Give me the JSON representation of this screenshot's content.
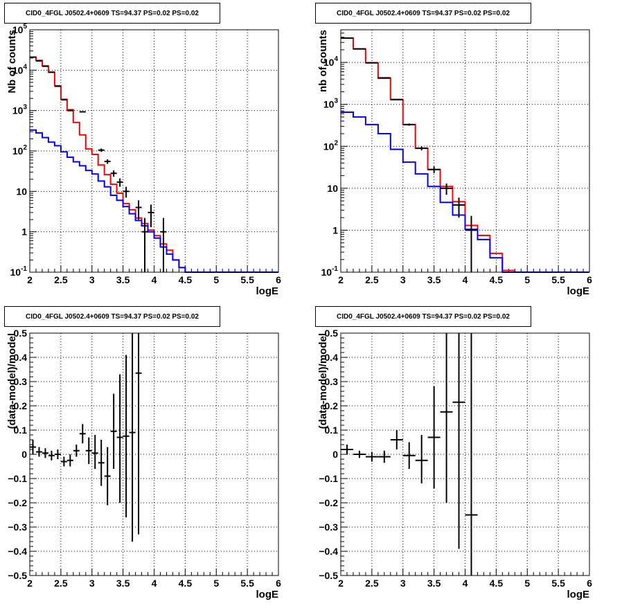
{
  "chart_data": [
    {
      "type": "histogram",
      "title": "CID0_4FGL J0502.4+0609 TS=94.37 PS=0.02 PS=0.02",
      "xlabel": "logE",
      "ylabel": "Nb of counts",
      "xlim": [
        2,
        6
      ],
      "ylim": [
        0.1,
        100000
      ],
      "yscale": "log",
      "grid": true,
      "x_ticks": [
        "2",
        "2.5",
        "3",
        "3.5",
        "4",
        "4.5",
        "5",
        "5.5",
        "6"
      ],
      "y_ticks": [
        {
          "v": 0.1,
          "base": "10",
          "exp": "-1"
        },
        {
          "v": 1,
          "text": "1"
        },
        {
          "v": 10,
          "text": "10"
        },
        {
          "v": 100,
          "base": "10",
          "exp": "2"
        },
        {
          "v": 1000,
          "base": "10",
          "exp": "3"
        },
        {
          "v": 10000,
          "base": "10",
          "exp": "4"
        },
        {
          "v": 100000,
          "base": "10",
          "exp": "5"
        }
      ],
      "bin_edges": [
        2.0,
        2.1,
        2.2,
        2.3,
        2.4,
        2.5,
        2.6,
        2.7,
        2.8,
        2.9,
        3.0,
        3.1,
        3.2,
        3.3,
        3.4,
        3.5,
        3.6,
        3.7,
        3.8,
        3.9,
        4.0,
        4.1,
        4.2,
        4.3,
        4.4,
        4.5,
        4.6,
        4.7,
        4.8,
        4.9,
        5.0,
        5.1,
        5.2,
        5.3,
        5.4,
        5.5,
        5.6,
        5.7,
        5.8,
        5.9,
        6.0
      ],
      "series": [
        {
          "color": "#ff0000",
          "kind": "step",
          "values": [
            21000,
            17500,
            12800,
            8900,
            4100,
            1900,
            1050,
            510,
            250,
            112,
            82,
            45,
            26,
            15,
            9,
            5,
            3.5,
            2.2,
            1.6,
            1.1,
            0.8,
            0.5,
            0.35,
            0.2,
            0.13,
            0.1,
            0.1,
            0.1,
            0.1,
            0.1,
            0.1,
            0.1,
            0.1,
            0.1,
            0.1,
            0.1,
            0.1,
            0.1,
            0.1,
            0.1
          ]
        },
        {
          "color": "#0000ff",
          "kind": "step",
          "values": [
            330,
            280,
            215,
            165,
            135,
            95,
            70,
            54,
            43,
            33,
            27,
            18,
            13,
            8,
            6,
            4.2,
            2.8,
            1.9,
            1.4,
            1.0,
            0.7,
            0.42,
            0.28,
            0.2,
            0.13,
            0.1,
            0.1,
            0.1,
            0.1,
            0.1,
            0.1,
            0.1,
            0.1,
            0.1,
            0.1,
            0.1,
            0.1,
            0.1,
            0.1,
            0.1
          ]
        },
        {
          "color": "#000000",
          "kind": "points",
          "points": [
            {
              "x": 2.05,
              "y": 21000,
              "lo": 20850,
              "hi": 21150
            },
            {
              "x": 2.15,
              "y": 17000,
              "lo": 16870,
              "hi": 17130
            },
            {
              "x": 2.25,
              "y": 12500,
              "lo": 12390,
              "hi": 12610
            },
            {
              "x": 2.35,
              "y": 8900,
              "lo": 8800,
              "hi": 9000
            },
            {
              "x": 2.45,
              "y": 4000,
              "lo": 3940,
              "hi": 4060
            },
            {
              "x": 2.55,
              "y": 1850,
              "lo": 1810,
              "hi": 1890
            },
            {
              "x": 2.65,
              "y": 1000,
              "lo": 970,
              "hi": 1030
            },
            {
              "x": 2.85,
              "y": 930,
              "lo": 900,
              "hi": 960
            },
            {
              "x": 3.15,
              "y": 105,
              "lo": 95,
              "hi": 115
            },
            {
              "x": 3.25,
              "y": 55,
              "lo": 48,
              "hi": 62
            },
            {
              "x": 3.35,
              "y": 28,
              "lo": 23,
              "hi": 33
            },
            {
              "x": 3.45,
              "y": 17,
              "lo": 13,
              "hi": 21
            },
            {
              "x": 3.55,
              "y": 10,
              "lo": 7,
              "hi": 13
            },
            {
              "x": 3.75,
              "y": 4,
              "lo": 2,
              "hi": 6
            },
            {
              "x": 3.85,
              "y": 1,
              "lo": 0.1,
              "hi": 2.2
            },
            {
              "x": 3.95,
              "y": 3,
              "lo": 1.3,
              "hi": 4.7
            },
            {
              "x": 4.15,
              "y": 1,
              "lo": 0.1,
              "hi": 2.2
            }
          ]
        }
      ]
    },
    {
      "type": "histogram",
      "title": "CID0_4FGL J0502.4+0609 TS=94.37 PS=0.02 PS=0.02",
      "xlabel": "logE",
      "ylabel": "nb of counts",
      "xlim": [
        2,
        6
      ],
      "ylim": [
        0.1,
        60000
      ],
      "yscale": "log",
      "grid": true,
      "x_ticks": [
        "2",
        "2.5",
        "3",
        "3.5",
        "4",
        "4.5",
        "5",
        "5.5",
        "6"
      ],
      "y_ticks": [
        {
          "v": 0.1,
          "base": "10",
          "exp": "-1"
        },
        {
          "v": 1,
          "text": "1"
        },
        {
          "v": 10,
          "text": "10"
        },
        {
          "v": 100,
          "base": "10",
          "exp": "2"
        },
        {
          "v": 1000,
          "base": "10",
          "exp": "3"
        },
        {
          "v": 10000,
          "base": "10",
          "exp": "4"
        }
      ],
      "bin_edges": [
        2.0,
        2.2,
        2.4,
        2.6,
        2.8,
        3.0,
        3.2,
        3.4,
        3.6,
        3.8,
        4.0,
        4.2,
        4.4,
        4.6,
        4.8,
        5.0,
        5.2,
        5.4,
        5.6,
        5.8,
        6.0
      ],
      "series": [
        {
          "color": "#ff0000",
          "kind": "step",
          "values": [
            38000,
            21000,
            9800,
            4200,
            1300,
            330,
            90,
            28,
            11,
            4.8,
            1.3,
            0.75,
            0.28,
            0.11,
            0.1,
            0.1,
            0.1,
            0.1,
            0.1,
            0.1
          ]
        },
        {
          "color": "#0000ff",
          "kind": "step",
          "values": [
            650,
            500,
            330,
            200,
            85,
            42,
            22,
            11,
            4.6,
            2.3,
            1.05,
            0.6,
            0.22,
            0.1,
            0.1,
            0.1,
            0.1,
            0.1,
            0.1,
            0.1
          ]
        },
        {
          "color": "#000000",
          "kind": "points",
          "points": [
            {
              "x": 2.1,
              "y": 38000,
              "lo": 37800,
              "hi": 38200
            },
            {
              "x": 2.3,
              "y": 21000,
              "lo": 20850,
              "hi": 21150
            },
            {
              "x": 2.5,
              "y": 9800,
              "lo": 9700,
              "hi": 9900
            },
            {
              "x": 2.7,
              "y": 4300,
              "lo": 4230,
              "hi": 4370
            },
            {
              "x": 2.9,
              "y": 1300,
              "lo": 1260,
              "hi": 1340
            },
            {
              "x": 3.1,
              "y": 330,
              "lo": 310,
              "hi": 350
            },
            {
              "x": 3.3,
              "y": 90,
              "lo": 80,
              "hi": 100
            },
            {
              "x": 3.5,
              "y": 28,
              "lo": 23,
              "hi": 33
            },
            {
              "x": 3.7,
              "y": 10,
              "lo": 7,
              "hi": 13
            },
            {
              "x": 3.9,
              "y": 4,
              "lo": 2,
              "hi": 6
            },
            {
              "x": 4.1,
              "y": 1,
              "lo": 0.1,
              "hi": 2.2
            }
          ]
        }
      ]
    },
    {
      "type": "scatter",
      "title": "CID0_4FGL J0502.4+0609 TS=94.37 PS=0.02 PS=0.02",
      "xlabel": "logE",
      "ylabel": "(data-model)/model",
      "xlim": [
        2,
        6
      ],
      "ylim": [
        -0.5,
        0.5
      ],
      "grid": true,
      "x_ticks": [
        "2",
        "2.5",
        "3",
        "3.5",
        "4",
        "4.5",
        "5",
        "5.5",
        "6"
      ],
      "y_ticks": [
        "0.5",
        "0.4",
        "0.3",
        "0.2",
        "0.1",
        "0",
        "−0.1",
        "−0.2",
        "−0.3",
        "−0.4",
        "−0.5"
      ],
      "xerr": 0.05,
      "points": [
        {
          "x": 2.05,
          "y": 0.03,
          "lo": 0.0,
          "hi": 0.06
        },
        {
          "x": 2.15,
          "y": 0.01,
          "lo": -0.01,
          "hi": 0.03
        },
        {
          "x": 2.25,
          "y": 0.005,
          "lo": -0.015,
          "hi": 0.025
        },
        {
          "x": 2.35,
          "y": -0.005,
          "lo": -0.025,
          "hi": 0.015
        },
        {
          "x": 2.45,
          "y": 0.0,
          "lo": -0.02,
          "hi": 0.02
        },
        {
          "x": 2.55,
          "y": -0.03,
          "lo": -0.05,
          "hi": -0.01
        },
        {
          "x": 2.65,
          "y": -0.025,
          "lo": -0.05,
          "hi": 0.0
        },
        {
          "x": 2.75,
          "y": 0.015,
          "lo": -0.01,
          "hi": 0.04
        },
        {
          "x": 2.85,
          "y": 0.085,
          "lo": 0.045,
          "hi": 0.125
        },
        {
          "x": 2.95,
          "y": 0.015,
          "lo": -0.04,
          "hi": 0.07
        },
        {
          "x": 3.05,
          "y": 0.005,
          "lo": -0.06,
          "hi": 0.08
        },
        {
          "x": 3.15,
          "y": -0.035,
          "lo": -0.13,
          "hi": 0.06
        },
        {
          "x": 3.25,
          "y": -0.09,
          "lo": -0.21,
          "hi": 0.03
        },
        {
          "x": 3.35,
          "y": 0.095,
          "lo": -0.06,
          "hi": 0.25
        },
        {
          "x": 3.45,
          "y": 0.07,
          "lo": -0.2,
          "hi": 0.33
        },
        {
          "x": 3.55,
          "y": 0.075,
          "lo": -0.26,
          "hi": 0.41
        },
        {
          "x": 3.65,
          "y": 0.09,
          "lo": -0.36,
          "hi": 0.5
        },
        {
          "x": 3.75,
          "y": 0.335,
          "lo": -0.33,
          "hi": 0.5
        }
      ]
    },
    {
      "type": "scatter",
      "title": "CID0_4FGL J0502.4+0609 TS=94.37 PS=0.02 PS=0.02",
      "xlabel": "logE",
      "ylabel": "(data-model)/model",
      "xlim": [
        2,
        6
      ],
      "ylim": [
        -0.5,
        0.5
      ],
      "grid": true,
      "x_ticks": [
        "2",
        "2.5",
        "3",
        "3.5",
        "4",
        "4.5",
        "5",
        "5.5",
        "6"
      ],
      "y_ticks": [
        "0.5",
        "0.4",
        "0.3",
        "0.2",
        "0.1",
        "0",
        "−0.1",
        "−0.2",
        "−0.3",
        "−0.4",
        "−0.5"
      ],
      "xerr": 0.1,
      "points": [
        {
          "x": 2.1,
          "y": 0.02,
          "lo": 0.0,
          "hi": 0.04
        },
        {
          "x": 2.3,
          "y": 0.0,
          "lo": -0.015,
          "hi": 0.015
        },
        {
          "x": 2.5,
          "y": -0.01,
          "lo": -0.03,
          "hi": 0.01
        },
        {
          "x": 2.7,
          "y": -0.01,
          "lo": -0.035,
          "hi": 0.015
        },
        {
          "x": 2.9,
          "y": 0.06,
          "lo": 0.02,
          "hi": 0.1
        },
        {
          "x": 3.1,
          "y": -0.005,
          "lo": -0.06,
          "hi": 0.05
        },
        {
          "x": 3.3,
          "y": -0.025,
          "lo": -0.12,
          "hi": 0.08
        },
        {
          "x": 3.5,
          "y": 0.07,
          "lo": -0.14,
          "hi": 0.28
        },
        {
          "x": 3.7,
          "y": 0.175,
          "lo": -0.2,
          "hi": 0.5
        },
        {
          "x": 3.9,
          "y": 0.215,
          "lo": -0.39,
          "hi": 0.5
        },
        {
          "x": 4.1,
          "y": -0.25,
          "lo": -0.5,
          "hi": 0.5
        }
      ]
    }
  ]
}
